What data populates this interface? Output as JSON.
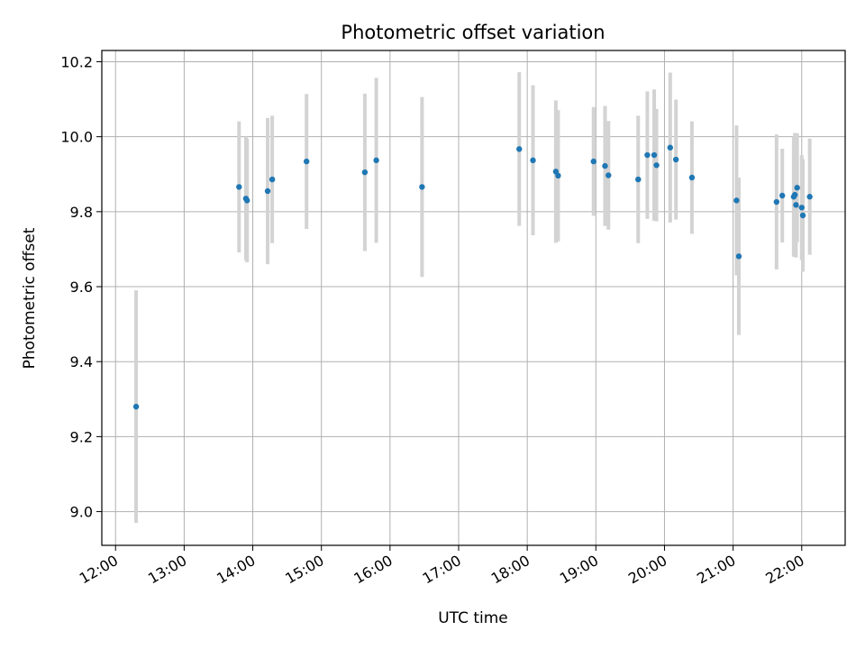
{
  "chart_data": {
    "type": "scatter",
    "title": "Photometric offset variation",
    "xlabel": "UTC time",
    "ylabel": "Photometric offset",
    "x_ticks": [
      "12:00",
      "13:00",
      "14:00",
      "15:00",
      "16:00",
      "17:00",
      "18:00",
      "19:00",
      "20:00",
      "21:00",
      "22:00"
    ],
    "y_ticks": [
      "9.0",
      "9.2",
      "9.4",
      "9.6",
      "9.8",
      "10.0",
      "10.2"
    ],
    "xlim": [
      "11:48",
      "22:38"
    ],
    "ylim": [
      8.91,
      10.23
    ],
    "grid": true,
    "point_color": "#1f77b4",
    "errorbar_color": "#d3d3d3",
    "points": [
      {
        "t": "12:18",
        "y": 9.28,
        "err": 0.31
      },
      {
        "t": "13:48",
        "y": 9.866,
        "err": 0.175
      },
      {
        "t": "13:54",
        "y": 9.835,
        "err": 0.165
      },
      {
        "t": "13:55",
        "y": 9.83,
        "err": 0.165
      },
      {
        "t": "14:13",
        "y": 9.855,
        "err": 0.195
      },
      {
        "t": "14:17",
        "y": 9.886,
        "err": 0.17
      },
      {
        "t": "14:47",
        "y": 9.934,
        "err": 0.18
      },
      {
        "t": "15:38",
        "y": 9.905,
        "err": 0.21
      },
      {
        "t": "15:48",
        "y": 9.937,
        "err": 0.22
      },
      {
        "t": "16:28",
        "y": 9.866,
        "err": 0.24
      },
      {
        "t": "17:53",
        "y": 9.967,
        "err": 0.205
      },
      {
        "t": "18:05",
        "y": 9.937,
        "err": 0.2
      },
      {
        "t": "18:25",
        "y": 9.907,
        "err": 0.19
      },
      {
        "t": "18:27",
        "y": 9.896,
        "err": 0.175
      },
      {
        "t": "18:58",
        "y": 9.934,
        "err": 0.145
      },
      {
        "t": "19:08",
        "y": 9.922,
        "err": 0.16
      },
      {
        "t": "19:11",
        "y": 9.897,
        "err": 0.145
      },
      {
        "t": "19:37",
        "y": 9.886,
        "err": 0.17
      },
      {
        "t": "19:45",
        "y": 9.951,
        "err": 0.17
      },
      {
        "t": "19:51",
        "y": 9.951,
        "err": 0.175
      },
      {
        "t": "19:53",
        "y": 9.924,
        "err": 0.15
      },
      {
        "t": "20:05",
        "y": 9.971,
        "err": 0.2
      },
      {
        "t": "20:10",
        "y": 9.939,
        "err": 0.16
      },
      {
        "t": "20:24",
        "y": 9.891,
        "err": 0.15
      },
      {
        "t": "21:03",
        "y": 9.83,
        "err": 0.2
      },
      {
        "t": "21:05",
        "y": 9.681,
        "err": 0.21
      },
      {
        "t": "21:38",
        "y": 9.826,
        "err": 0.18
      },
      {
        "t": "21:43",
        "y": 9.843,
        "err": 0.125
      },
      {
        "t": "21:53",
        "y": 9.84,
        "err": 0.16
      },
      {
        "t": "21:54",
        "y": 9.845,
        "err": 0.165
      },
      {
        "t": "21:55",
        "y": 9.818,
        "err": 0.14
      },
      {
        "t": "21:56",
        "y": 9.864,
        "err": 0.145
      },
      {
        "t": "22:00",
        "y": 9.811,
        "err": 0.14
      },
      {
        "t": "22:01",
        "y": 9.79,
        "err": 0.15
      },
      {
        "t": "22:07",
        "y": 9.84,
        "err": 0.155
      }
    ]
  }
}
